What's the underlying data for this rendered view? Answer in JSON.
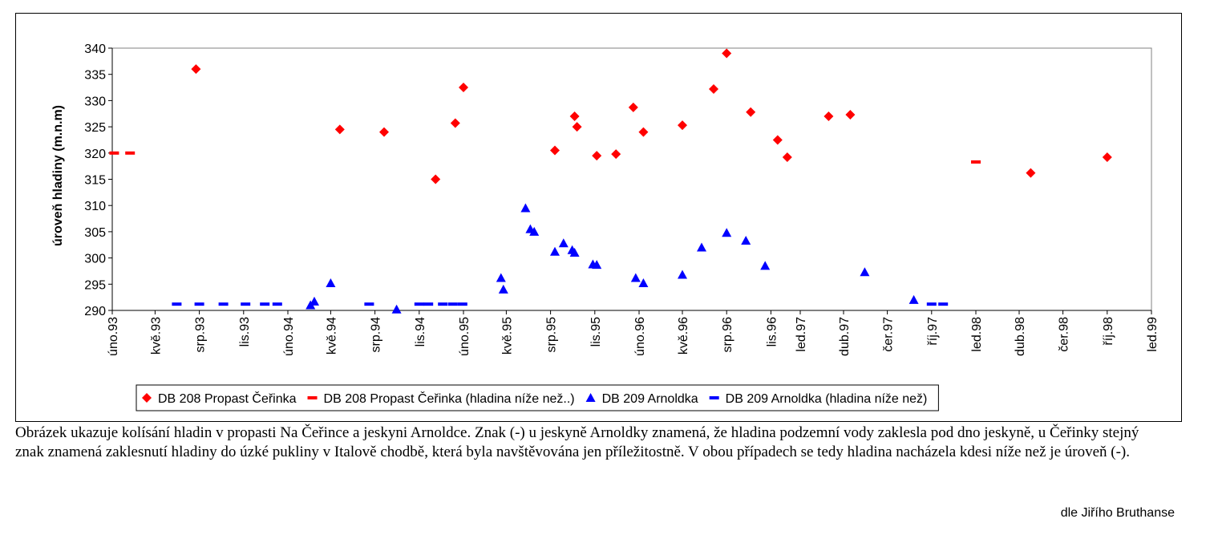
{
  "chart_data": {
    "type": "scatter",
    "ylabel": "úroveň hladiny (m.n.m)",
    "ylim": [
      290,
      340
    ],
    "yticks": [
      290,
      295,
      300,
      305,
      310,
      315,
      320,
      325,
      330,
      335,
      340
    ],
    "x_axis_type": "date",
    "xlim": [
      "1993-02-01",
      "1999-01-01"
    ],
    "xticks": [
      {
        "date": "1993-02-01",
        "label": "úno.93"
      },
      {
        "date": "1993-05-01",
        "label": "kvě.93"
      },
      {
        "date": "1993-08-01",
        "label": "srp.93"
      },
      {
        "date": "1993-11-01",
        "label": "lis.93"
      },
      {
        "date": "1994-02-01",
        "label": "úno.94"
      },
      {
        "date": "1994-05-01",
        "label": "kvě.94"
      },
      {
        "date": "1994-08-01",
        "label": "srp.94"
      },
      {
        "date": "1994-11-01",
        "label": "lis.94"
      },
      {
        "date": "1995-02-01",
        "label": "úno.95"
      },
      {
        "date": "1995-05-01",
        "label": "kvě.95"
      },
      {
        "date": "1995-08-01",
        "label": "srp.95"
      },
      {
        "date": "1995-11-01",
        "label": "lis.95"
      },
      {
        "date": "1996-02-01",
        "label": "úno.96"
      },
      {
        "date": "1996-05-01",
        "label": "kvě.96"
      },
      {
        "date": "1996-08-01",
        "label": "srp.96"
      },
      {
        "date": "1996-11-01",
        "label": "lis.96"
      },
      {
        "date": "1997-01-01",
        "label": "led.97"
      },
      {
        "date": "1997-04-01",
        "label": "dub.97"
      },
      {
        "date": "1997-07-01",
        "label": "čer.97"
      },
      {
        "date": "1997-10-01",
        "label": "říj.97"
      },
      {
        "date": "1998-01-01",
        "label": "led.98"
      },
      {
        "date": "1998-04-01",
        "label": "dub.98"
      },
      {
        "date": "1998-07-01",
        "label": "čer.98"
      },
      {
        "date": "1998-10-01",
        "label": "říj.98"
      },
      {
        "date": "1999-01-01",
        "label": "led.99"
      }
    ],
    "legend_position": "bottom",
    "series": [
      {
        "name": "DB 208  Propast Čeřinka",
        "marker": "diamond",
        "color": "#ff0000",
        "points": [
          {
            "x": "1993-07-25",
            "y": 336.0
          },
          {
            "x": "1994-05-20",
            "y": 324.5
          },
          {
            "x": "1994-08-20",
            "y": 324.0
          },
          {
            "x": "1994-12-05",
            "y": 315.0
          },
          {
            "x": "1995-01-15",
            "y": 325.7
          },
          {
            "x": "1995-02-01",
            "y": 332.5
          },
          {
            "x": "1995-08-10",
            "y": 320.5
          },
          {
            "x": "1995-09-20",
            "y": 327.0
          },
          {
            "x": "1995-09-25",
            "y": 325.0
          },
          {
            "x": "1995-11-05",
            "y": 319.5
          },
          {
            "x": "1995-12-15",
            "y": 319.8
          },
          {
            "x": "1996-01-20",
            "y": 328.7
          },
          {
            "x": "1996-02-10",
            "y": 324.0
          },
          {
            "x": "1996-05-01",
            "y": 325.3
          },
          {
            "x": "1996-07-05",
            "y": 332.2
          },
          {
            "x": "1996-08-01",
            "y": 339.0
          },
          {
            "x": "1996-09-20",
            "y": 327.8
          },
          {
            "x": "1996-11-15",
            "y": 322.5
          },
          {
            "x": "1996-12-05",
            "y": 319.2
          },
          {
            "x": "1997-03-01",
            "y": 327.0
          },
          {
            "x": "1997-04-15",
            "y": 327.3
          },
          {
            "x": "1998-04-25",
            "y": 316.2
          },
          {
            "x": "1998-10-01",
            "y": 319.2
          }
        ]
      },
      {
        "name": "DB 208 Propast Čeřinka (hladina níže než..)",
        "marker": "dash",
        "color": "#ff0000",
        "points": [
          {
            "x": "1993-02-05",
            "y": 320.0
          },
          {
            "x": "1993-03-10",
            "y": 320.0
          },
          {
            "x": "1998-01-01",
            "y": 318.3
          }
        ]
      },
      {
        "name": "DB 209 Arnoldka",
        "marker": "triangle",
        "color": "#0000ff",
        "points": [
          {
            "x": "1994-03-20",
            "y": 291.0
          },
          {
            "x": "1994-03-28",
            "y": 291.7
          },
          {
            "x": "1994-05-01",
            "y": 295.2
          },
          {
            "x": "1994-09-15",
            "y": 290.2
          },
          {
            "x": "1995-04-20",
            "y": 296.2
          },
          {
            "x": "1995-04-25",
            "y": 294.0
          },
          {
            "x": "1995-06-10",
            "y": 309.5
          },
          {
            "x": "1995-06-20",
            "y": 305.5
          },
          {
            "x": "1995-06-28",
            "y": 305.0
          },
          {
            "x": "1995-08-10",
            "y": 301.2
          },
          {
            "x": "1995-08-28",
            "y": 302.8
          },
          {
            "x": "1995-09-15",
            "y": 301.5
          },
          {
            "x": "1995-09-20",
            "y": 301.0
          },
          {
            "x": "1995-10-28",
            "y": 298.8
          },
          {
            "x": "1995-11-05",
            "y": 298.7
          },
          {
            "x": "1996-01-25",
            "y": 296.2
          },
          {
            "x": "1996-02-10",
            "y": 295.2
          },
          {
            "x": "1996-05-01",
            "y": 296.8
          },
          {
            "x": "1996-06-10",
            "y": 302.0
          },
          {
            "x": "1996-08-01",
            "y": 304.8
          },
          {
            "x": "1996-09-10",
            "y": 303.3
          },
          {
            "x": "1996-10-20",
            "y": 298.5
          },
          {
            "x": "1997-05-15",
            "y": 297.3
          },
          {
            "x": "1997-08-25",
            "y": 292.0
          }
        ]
      },
      {
        "name": "DB 209 Arnoldka (hladina níže než)",
        "marker": "dash",
        "color": "#0000ff",
        "points": [
          {
            "x": "1993-06-15",
            "y": 291.2
          },
          {
            "x": "1993-08-01",
            "y": 291.2
          },
          {
            "x": "1993-09-20",
            "y": 291.2
          },
          {
            "x": "1993-11-05",
            "y": 291.2
          },
          {
            "x": "1993-12-15",
            "y": 291.2
          },
          {
            "x": "1994-01-10",
            "y": 291.2
          },
          {
            "x": "1994-07-20",
            "y": 291.2
          },
          {
            "x": "1994-11-01",
            "y": 291.2
          },
          {
            "x": "1994-11-20",
            "y": 291.2
          },
          {
            "x": "1994-12-20",
            "y": 291.2
          },
          {
            "x": "1995-01-10",
            "y": 291.2
          },
          {
            "x": "1995-01-30",
            "y": 291.2
          },
          {
            "x": "1997-10-01",
            "y": 291.2
          },
          {
            "x": "1997-10-25",
            "y": 291.2
          }
        ]
      }
    ]
  },
  "caption": "Obrázek ukazuje kolísání hladin v propasti Na Čeřince a jeskyni Arnoldce. Znak (-) u jeskyně Arnoldky znamená, že hladina podzemní vody zaklesla pod dno jeskyně, u Čeřinky stejný znak znamená zaklesnutí hladiny do úzké pukliny v Italově chodbě, která byla navštěvována jen příležitostně. V obou případech se tedy hladina nacházela kdesi níže než je úroveň (-).",
  "credit": "dle Jiřího Bruthanse"
}
